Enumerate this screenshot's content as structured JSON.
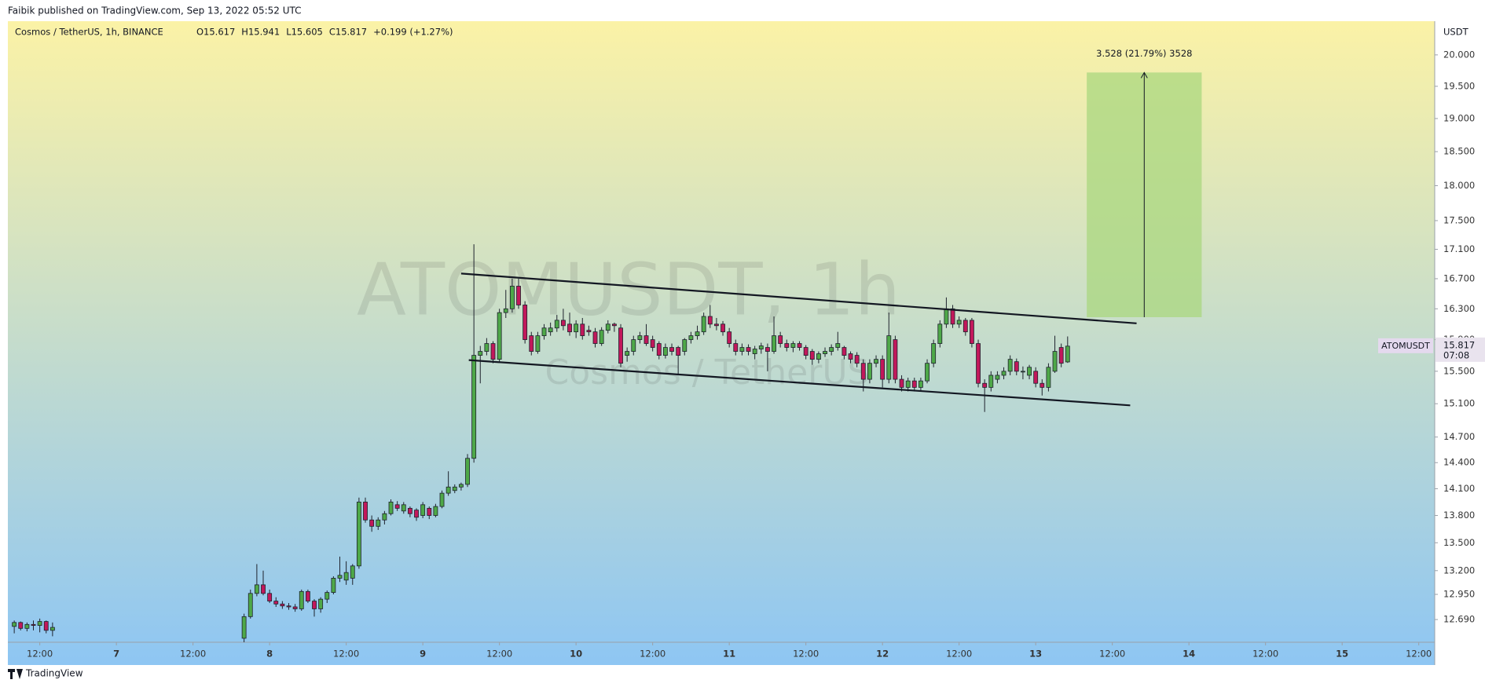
{
  "header": {
    "published": "Faibik published on TradingView.com, Sep 13, 2022 05:52 UTC",
    "footer": "TradingView"
  },
  "chart_data": {
    "type": "candlestick",
    "symbol": "Cosmos / TetherUS, 1h, BINANCE",
    "ohlc_legend": [
      "O15.617",
      "H15.941",
      "L15.605",
      "C15.817",
      "+0.199 (+1.27%)"
    ],
    "watermark": [
      "ATOMUSDT, 1h",
      "Cosmos / TetherUS"
    ],
    "y_unit": "USDT",
    "log_scale": true,
    "grid": false,
    "up_color": "#4ea848",
    "down_color": "#c2185b",
    "wick_color": "#1e222d",
    "xlim": [
      7,
      230.5
    ],
    "ylim": [
      12.46,
      20.55
    ],
    "xticks": [
      {
        "value": 12,
        "label": "12:00"
      },
      {
        "value": 24,
        "label": "7"
      },
      {
        "value": 36,
        "label": "12:00"
      },
      {
        "value": 48,
        "label": "8"
      },
      {
        "value": 60,
        "label": "12:00"
      },
      {
        "value": 72,
        "label": "9"
      },
      {
        "value": 84,
        "label": "12:00"
      },
      {
        "value": 96,
        "label": "10"
      },
      {
        "value": 108,
        "label": "12:00"
      },
      {
        "value": 120,
        "label": "11"
      },
      {
        "value": 132,
        "label": "12:00"
      },
      {
        "value": 144,
        "label": "12"
      },
      {
        "value": 156,
        "label": "12:00"
      },
      {
        "value": 168,
        "label": "13"
      },
      {
        "value": 180,
        "label": "12:00"
      },
      {
        "value": 192,
        "label": "14"
      },
      {
        "value": 204,
        "label": "12:00"
      },
      {
        "value": 216,
        "label": "15"
      },
      {
        "value": 228,
        "label": "12:00"
      }
    ],
    "yticks": [
      {
        "value": 12.69,
        "label": "12.690"
      },
      {
        "value": 12.95,
        "label": "12.950"
      },
      {
        "value": 13.2,
        "label": "13.200"
      },
      {
        "value": 13.5,
        "label": "13.500"
      },
      {
        "value": 13.8,
        "label": "13.800"
      },
      {
        "value": 14.1,
        "label": "14.100"
      },
      {
        "value": 14.4,
        "label": "14.400"
      },
      {
        "value": 14.7,
        "label": "14.700"
      },
      {
        "value": 15.1,
        "label": "15.100"
      },
      {
        "value": 15.5,
        "label": "15.500"
      },
      {
        "value": 15.9,
        "label": "15.900"
      },
      {
        "value": 16.3,
        "label": "16.300"
      },
      {
        "value": 16.7,
        "label": "16.700"
      },
      {
        "value": 17.1,
        "label": "17.100"
      },
      {
        "value": 17.5,
        "label": "17.500"
      },
      {
        "value": 18,
        "label": "18.000"
      },
      {
        "value": 18.5,
        "label": "18.500"
      },
      {
        "value": 19,
        "label": "19.000"
      },
      {
        "value": 19.5,
        "label": "19.500"
      },
      {
        "value": 20,
        "label": "20.000"
      }
    ],
    "last_price": {
      "name": "ATOMUSDT",
      "value": 15.817,
      "countdown": "07:08",
      "color": "#4ea848"
    },
    "x": [
      8,
      9,
      10,
      11,
      12,
      13,
      14,
      44,
      45,
      46,
      47,
      48,
      49,
      50,
      51,
      52,
      53,
      54,
      55,
      56,
      57,
      58,
      59,
      60,
      61,
      62,
      63,
      64,
      65,
      66,
      67,
      68,
      69,
      70,
      71,
      72,
      73,
      74,
      75,
      76,
      77,
      78,
      79,
      80,
      81,
      82,
      83,
      84,
      85,
      86,
      87,
      88,
      89,
      90,
      91,
      92,
      93,
      94,
      95,
      96,
      97,
      98,
      99,
      100,
      101,
      102,
      103,
      104,
      105,
      106,
      107,
      108,
      109,
      110,
      111,
      112,
      113,
      114,
      115,
      116,
      117,
      118,
      119,
      120,
      121,
      122,
      123,
      124,
      125,
      126,
      127,
      128,
      129,
      130,
      131,
      132,
      133,
      134,
      135,
      136,
      137,
      138,
      139,
      140,
      141,
      142,
      143,
      144,
      145,
      146,
      147,
      148,
      149,
      150,
      151,
      152,
      153,
      154,
      155,
      156,
      157,
      158,
      159,
      160,
      161,
      162,
      163,
      164,
      165,
      166,
      167,
      168,
      169,
      170,
      171,
      172,
      173
    ],
    "ohlc": [
      [
        12.62,
        12.68,
        12.55,
        12.66
      ],
      [
        12.66,
        12.67,
        12.58,
        12.6
      ],
      [
        12.6,
        12.66,
        12.57,
        12.64
      ],
      [
        12.64,
        12.68,
        12.58,
        12.63
      ],
      [
        12.63,
        12.7,
        12.56,
        12.67
      ],
      [
        12.67,
        12.68,
        12.55,
        12.58
      ],
      [
        12.58,
        12.66,
        12.52,
        12.61
      ],
      [
        12.5,
        12.75,
        12.45,
        12.72
      ],
      [
        12.72,
        13.0,
        12.7,
        12.96
      ],
      [
        12.96,
        13.27,
        12.93,
        13.05
      ],
      [
        13.05,
        13.2,
        12.94,
        12.96
      ],
      [
        12.96,
        13.0,
        12.86,
        12.88
      ],
      [
        12.88,
        12.92,
        12.82,
        12.85
      ],
      [
        12.85,
        12.88,
        12.8,
        12.83
      ],
      [
        12.83,
        12.86,
        12.79,
        12.82
      ],
      [
        12.82,
        12.85,
        12.77,
        12.8
      ],
      [
        12.8,
        13.0,
        12.78,
        12.98
      ],
      [
        12.98,
        13.0,
        12.86,
        12.88
      ],
      [
        12.88,
        12.9,
        12.72,
        12.8
      ],
      [
        12.8,
        12.92,
        12.76,
        12.9
      ],
      [
        12.9,
        12.99,
        12.86,
        12.97
      ],
      [
        12.97,
        13.14,
        12.95,
        13.12
      ],
      [
        13.12,
        13.35,
        13.08,
        13.15
      ],
      [
        13.1,
        13.3,
        13.05,
        13.18
      ],
      [
        13.12,
        13.27,
        13.05,
        13.25
      ],
      [
        13.25,
        14.0,
        13.22,
        13.95
      ],
      [
        13.95,
        14.0,
        13.72,
        13.75
      ],
      [
        13.75,
        13.8,
        13.62,
        13.68
      ],
      [
        13.68,
        13.78,
        13.64,
        13.75
      ],
      [
        13.75,
        13.85,
        13.7,
        13.82
      ],
      [
        13.82,
        13.98,
        13.8,
        13.95
      ],
      [
        13.92,
        13.96,
        13.85,
        13.88
      ],
      [
        13.85,
        13.95,
        13.82,
        13.92
      ],
      [
        13.88,
        13.9,
        13.78,
        13.82
      ],
      [
        13.86,
        13.88,
        13.74,
        13.78
      ],
      [
        13.8,
        13.95,
        13.77,
        13.92
      ],
      [
        13.88,
        13.9,
        13.76,
        13.8
      ],
      [
        13.8,
        13.93,
        13.78,
        13.9
      ],
      [
        13.9,
        14.08,
        13.88,
        14.05
      ],
      [
        14.05,
        14.3,
        14.02,
        14.12
      ],
      [
        14.08,
        14.15,
        14.05,
        14.12
      ],
      [
        14.12,
        14.17,
        14.08,
        14.15
      ],
      [
        14.15,
        14.5,
        14.12,
        14.45
      ],
      [
        14.45,
        17.17,
        14.4,
        15.7
      ],
      [
        15.7,
        15.82,
        15.35,
        15.75
      ],
      [
        15.75,
        15.92,
        15.7,
        15.85
      ],
      [
        15.85,
        15.88,
        15.6,
        15.65
      ],
      [
        15.65,
        16.3,
        15.62,
        16.25
      ],
      [
        16.25,
        16.55,
        16.18,
        16.3
      ],
      [
        16.3,
        16.7,
        16.25,
        16.6
      ],
      [
        16.6,
        16.7,
        16.3,
        16.35
      ],
      [
        16.35,
        16.4,
        15.85,
        15.9
      ],
      [
        15.95,
        16.0,
        15.7,
        15.75
      ],
      [
        15.75,
        16.0,
        15.72,
        15.95
      ],
      [
        15.95,
        16.1,
        15.9,
        16.05
      ],
      [
        16.0,
        16.12,
        15.95,
        16.05
      ],
      [
        16.05,
        16.22,
        16.0,
        16.15
      ],
      [
        16.15,
        16.3,
        16.02,
        16.08
      ],
      [
        16.1,
        16.25,
        15.95,
        16.0
      ],
      [
        16.0,
        16.15,
        15.92,
        16.1
      ],
      [
        16.1,
        16.18,
        15.9,
        15.95
      ],
      [
        16.02,
        16.08,
        15.95,
        16.0
      ],
      [
        16.0,
        16.05,
        15.8,
        15.85
      ],
      [
        15.85,
        16.06,
        15.82,
        16.02
      ],
      [
        16.02,
        16.15,
        15.98,
        16.1
      ],
      [
        16.1,
        16.12,
        16.0,
        16.08
      ],
      [
        16.05,
        16.1,
        15.55,
        15.6
      ],
      [
        15.7,
        15.8,
        15.62,
        15.75
      ],
      [
        15.75,
        15.95,
        15.7,
        15.9
      ],
      [
        15.9,
        16.0,
        15.85,
        15.95
      ],
      [
        15.95,
        16.1,
        15.82,
        15.85
      ],
      [
        15.9,
        15.95,
        15.75,
        15.8
      ],
      [
        15.85,
        15.88,
        15.65,
        15.7
      ],
      [
        15.7,
        15.85,
        15.66,
        15.8
      ],
      [
        15.8,
        15.85,
        15.7,
        15.75
      ],
      [
        15.8,
        15.82,
        15.45,
        15.7
      ],
      [
        15.75,
        15.92,
        15.7,
        15.9
      ],
      [
        15.9,
        16.0,
        15.85,
        15.95
      ],
      [
        15.95,
        16.08,
        15.9,
        16.0
      ],
      [
        16.0,
        16.25,
        15.96,
        16.2
      ],
      [
        16.2,
        16.35,
        16.05,
        16.1
      ],
      [
        16.1,
        16.18,
        16.02,
        16.08
      ],
      [
        16.1,
        16.14,
        15.95,
        16.0
      ],
      [
        16.0,
        16.05,
        15.8,
        15.85
      ],
      [
        15.85,
        15.9,
        15.7,
        15.75
      ],
      [
        15.75,
        15.85,
        15.7,
        15.8
      ],
      [
        15.8,
        15.84,
        15.7,
        15.75
      ],
      [
        15.72,
        15.82,
        15.65,
        15.78
      ],
      [
        15.78,
        15.86,
        15.72,
        15.82
      ],
      [
        15.8,
        15.85,
        15.5,
        15.75
      ],
      [
        15.75,
        16.2,
        15.72,
        15.95
      ],
      [
        15.95,
        16.0,
        15.8,
        15.85
      ],
      [
        15.85,
        15.9,
        15.75,
        15.8
      ],
      [
        15.8,
        15.88,
        15.74,
        15.85
      ],
      [
        15.85,
        15.88,
        15.76,
        15.8
      ],
      [
        15.8,
        15.83,
        15.65,
        15.7
      ],
      [
        15.75,
        15.78,
        15.58,
        15.65
      ],
      [
        15.65,
        15.75,
        15.6,
        15.72
      ],
      [
        15.72,
        15.8,
        15.68,
        15.75
      ],
      [
        15.75,
        15.84,
        15.7,
        15.8
      ],
      [
        15.8,
        16.0,
        15.76,
        15.85
      ],
      [
        15.8,
        15.82,
        15.65,
        15.7
      ],
      [
        15.72,
        15.75,
        15.6,
        15.65
      ],
      [
        15.7,
        15.74,
        15.55,
        15.6
      ],
      [
        15.6,
        15.65,
        15.25,
        15.4
      ],
      [
        15.4,
        15.65,
        15.35,
        15.6
      ],
      [
        15.6,
        15.7,
        15.55,
        15.65
      ],
      [
        15.65,
        15.7,
        15.3,
        15.4
      ],
      [
        15.4,
        16.25,
        15.35,
        15.95
      ],
      [
        15.9,
        15.95,
        15.35,
        15.4
      ],
      [
        15.4,
        15.45,
        15.25,
        15.3
      ],
      [
        15.3,
        15.42,
        15.25,
        15.38
      ],
      [
        15.38,
        15.42,
        15.25,
        15.3
      ],
      [
        15.3,
        15.42,
        15.26,
        15.38
      ],
      [
        15.38,
        15.65,
        15.35,
        15.6
      ],
      [
        15.6,
        15.9,
        15.55,
        15.85
      ],
      [
        15.85,
        16.15,
        15.8,
        16.1
      ],
      [
        16.1,
        16.45,
        16.05,
        16.3
      ],
      [
        16.3,
        16.35,
        16.05,
        16.1
      ],
      [
        16.1,
        16.2,
        16.05,
        16.15
      ],
      [
        16.15,
        16.18,
        15.95,
        16.0
      ],
      [
        16.15,
        16.18,
        15.8,
        15.85
      ],
      [
        15.85,
        15.9,
        15.3,
        15.35
      ],
      [
        15.35,
        15.4,
        15.0,
        15.3
      ],
      [
        15.3,
        15.5,
        15.25,
        15.45
      ],
      [
        15.4,
        15.5,
        15.35,
        15.45
      ],
      [
        15.45,
        15.55,
        15.4,
        15.5
      ],
      [
        15.5,
        15.7,
        15.45,
        15.65
      ],
      [
        15.62,
        15.66,
        15.45,
        15.5
      ],
      [
        15.5,
        15.56,
        15.4,
        15.5
      ],
      [
        15.45,
        15.58,
        15.4,
        15.55
      ],
      [
        15.5,
        15.55,
        15.3,
        15.35
      ],
      [
        15.35,
        15.4,
        15.2,
        15.3
      ],
      [
        15.3,
        15.6,
        15.25,
        15.55
      ],
      [
        15.5,
        15.95,
        15.48,
        15.75
      ],
      [
        15.8,
        15.85,
        15.55,
        15.6
      ],
      [
        15.617,
        15.941,
        15.605,
        15.817
      ]
    ],
    "trendlines": [
      {
        "x": [
          78,
          183.8
        ],
        "y": [
          16.77,
          16.11
        ],
        "color": "#131722"
      },
      {
        "x": [
          79.2,
          182.8
        ],
        "y": [
          15.64,
          15.08
        ],
        "color": "#131722"
      }
    ],
    "projection": {
      "x": [
        176,
        194
      ],
      "y": [
        16.19,
        19.718
      ],
      "label": "3.528 (21.79%) 3528",
      "color": "#a9d77f"
    }
  }
}
